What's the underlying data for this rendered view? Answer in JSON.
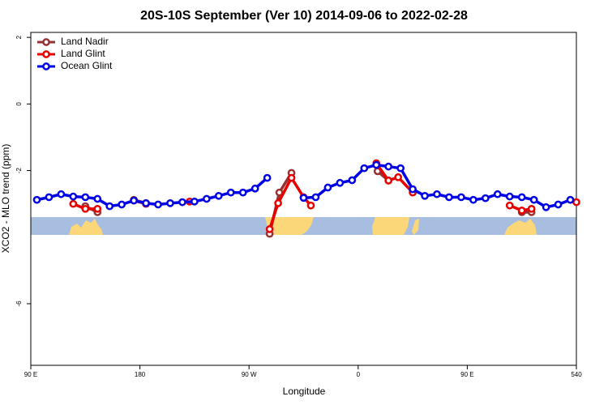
{
  "chart_data": {
    "type": "line",
    "title": "20S-10S September (Ver 10)   2014-09-06 to 2022-02-28",
    "xlabel": "Longitude",
    "ylabel": "XCO2 - MLO trend (ppm)",
    "xlim": [
      90,
      540
    ],
    "ylim": [
      -7.85,
      2.15
    ],
    "xticks": [
      {
        "value": 90,
        "label": "90 E"
      },
      180,
      {
        "value": 270,
        "label": "90 W"
      },
      0,
      {
        "value": 450,
        "label": "90 E"
      },
      540
    ],
    "yticks": [
      -6,
      -2,
      0,
      2
    ],
    "legend": "top-left",
    "series": [
      {
        "name": "Land Nadir",
        "color": "#963232",
        "x": [
          135,
          145,
          null,
          175,
          185,
          null,
          287,
          295,
          305,
          null,
          376,
          385,
          null,
          495,
          503
        ],
        "values": [
          -3.07,
          -3.25,
          null,
          -2.88,
          -2.98,
          null,
          -3.9,
          -2.66,
          -2.07,
          null,
          -2.02,
          -2.3,
          null,
          -3.25,
          -3.25
        ]
      },
      {
        "name": "Land Glint",
        "color": "#e60000",
        "x": [
          125,
          135,
          145,
          null,
          175,
          185,
          null,
          221,
          null,
          287,
          294,
          305,
          315,
          321,
          null,
          375,
          385,
          393,
          405,
          null,
          485,
          495,
          503,
          null,
          540
        ],
        "values": [
          -3.0,
          -3.15,
          -3.15,
          null,
          -2.9,
          -3.0,
          null,
          -2.93,
          null,
          -3.76,
          -2.98,
          -2.22,
          -2.8,
          -3.05,
          null,
          -1.78,
          -2.3,
          -2.2,
          -2.66,
          null,
          -3.05,
          -3.2,
          -3.15,
          null,
          -2.95
        ]
      },
      {
        "name": "Ocean Glint",
        "color": "#0000e6",
        "x": [
          95,
          105,
          115,
          125,
          135,
          145,
          155,
          165,
          175,
          185,
          195,
          205,
          215,
          225,
          235,
          245,
          255,
          265,
          275,
          285,
          null,
          315,
          325,
          335,
          345,
          355,
          365,
          375,
          385,
          395,
          405,
          415,
          425,
          435,
          445,
          455,
          465,
          475,
          485,
          495,
          505,
          515,
          525,
          535
        ],
        "values": [
          -2.88,
          -2.8,
          -2.71,
          -2.78,
          -2.8,
          -2.85,
          -3.07,
          -3.02,
          -2.9,
          -2.98,
          -3.02,
          -2.98,
          -2.95,
          -2.93,
          -2.85,
          -2.76,
          -2.66,
          -2.66,
          -2.54,
          -2.22,
          null,
          -2.82,
          -2.8,
          -2.51,
          -2.37,
          -2.29,
          -1.93,
          -1.83,
          -1.88,
          -1.93,
          -2.56,
          -2.76,
          -2.71,
          -2.8,
          -2.8,
          -2.88,
          -2.83,
          -2.71,
          -2.78,
          -2.8,
          -2.88,
          -3.1,
          -3.02,
          -2.88
        ]
      }
    ]
  }
}
